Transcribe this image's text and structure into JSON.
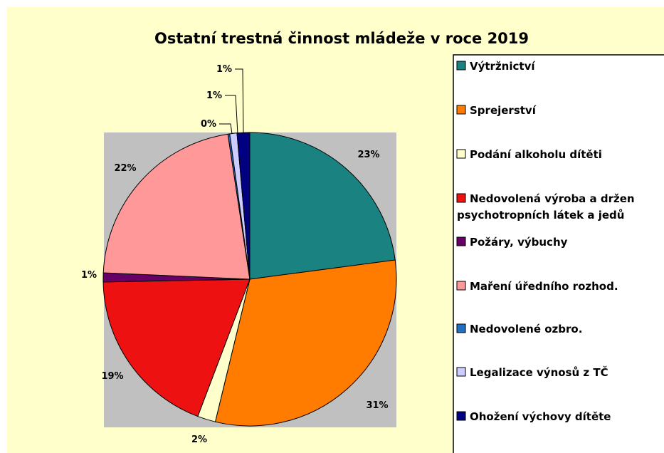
{
  "chart_data": {
    "type": "pie",
    "title": "Ostatní trestná činnost mládeže v roce 2019",
    "legend_position": "right",
    "slices": [
      {
        "name": "Výtržnictví",
        "value": 23,
        "label": "23%",
        "color": "#1b8282"
      },
      {
        "name": "Sprejerství",
        "value": 31,
        "label": "31%",
        "color": "#ff7c00"
      },
      {
        "name": "Podání alkoholu dítěti",
        "value": 2,
        "label": "2%",
        "color": "#ffffcc"
      },
      {
        "name": "Nedovolená výroba a držen\npsychotropních látek a jedů",
        "value": 19,
        "label": "19%",
        "color": "#ee1111"
      },
      {
        "name": "Požáry, výbuchy",
        "value": 1,
        "label": "1%",
        "color": "#660066"
      },
      {
        "name": "Maření úředního rozhod.",
        "value": 22,
        "label": "22%",
        "color": "#ff9999"
      },
      {
        "name": "Nedovolené ozbro.",
        "value": 0.2,
        "label": "0%",
        "color": "#1f6fc4"
      },
      {
        "name": "Legalizace výnosů z TČ",
        "value": 0.8,
        "label": "1%",
        "color": "#ccccff"
      },
      {
        "name": "Ohožení výchovy dítěte",
        "value": 1.4,
        "label": "1%",
        "color": "#000080"
      }
    ]
  },
  "colors": {
    "chart_background": "#ffffcc",
    "plot_area": "#c0c0c0",
    "legend_background": "#ffffff"
  }
}
